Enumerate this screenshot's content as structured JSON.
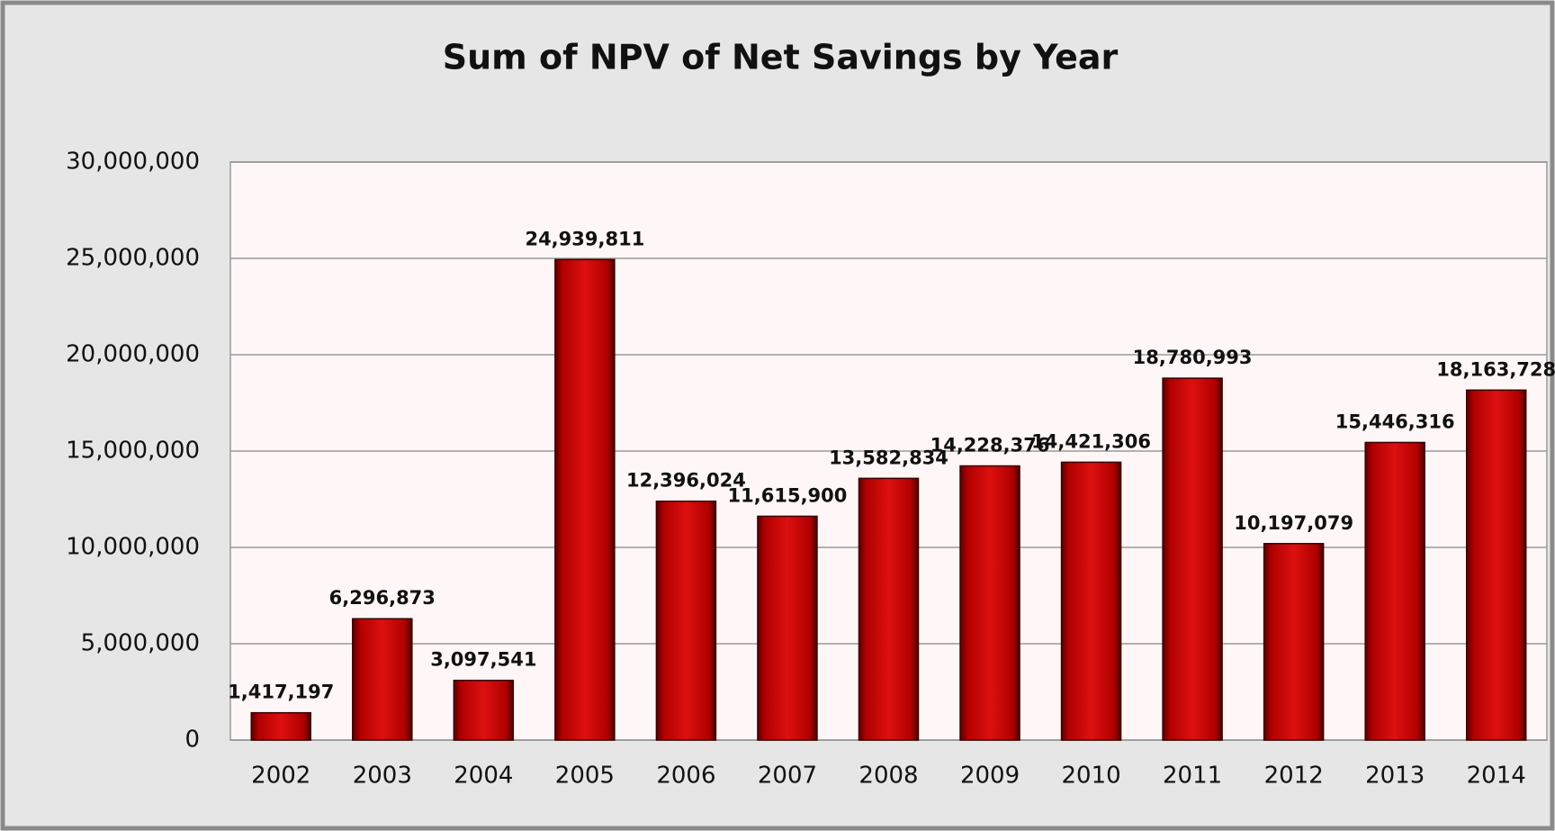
{
  "chart_data": {
    "type": "bar",
    "title": "Sum of NPV of Net Savings by Year",
    "categories": [
      "2002",
      "2003",
      "2004",
      "2005",
      "2006",
      "2007",
      "2008",
      "2009",
      "2010",
      "2011",
      "2012",
      "2013",
      "2014"
    ],
    "values": [
      1417197,
      6296873,
      3097541,
      24939811,
      12396024,
      11615900,
      13582834,
      14228376,
      14421306,
      18780993,
      10197079,
      15446316,
      18163728
    ],
    "value_labels": [
      "1,417,197",
      "6,296,873",
      "3,097,541",
      "24,939,811",
      "12,396,024",
      "11,615,900",
      "13,582,834",
      "14,228,376",
      "14,421,306",
      "18,780,993",
      "10,197,079",
      "15,446,316",
      "18,163,728"
    ],
    "color": "#cc0000",
    "ylim": [
      0,
      30000000
    ],
    "yticks": [
      0,
      {
        "value": 5000000,
        "label": "5,000,000"
      },
      {
        "value": 10000000,
        "label": "10,000,000"
      },
      {
        "value": 15000000,
        "label": "15,000,000"
      },
      {
        "value": 20000000,
        "label": "20,000,000"
      },
      {
        "value": 25000000,
        "label": "25,000,000"
      },
      {
        "value": 30000000,
        "label": "30,000,000"
      }
    ],
    "grid": true
  }
}
